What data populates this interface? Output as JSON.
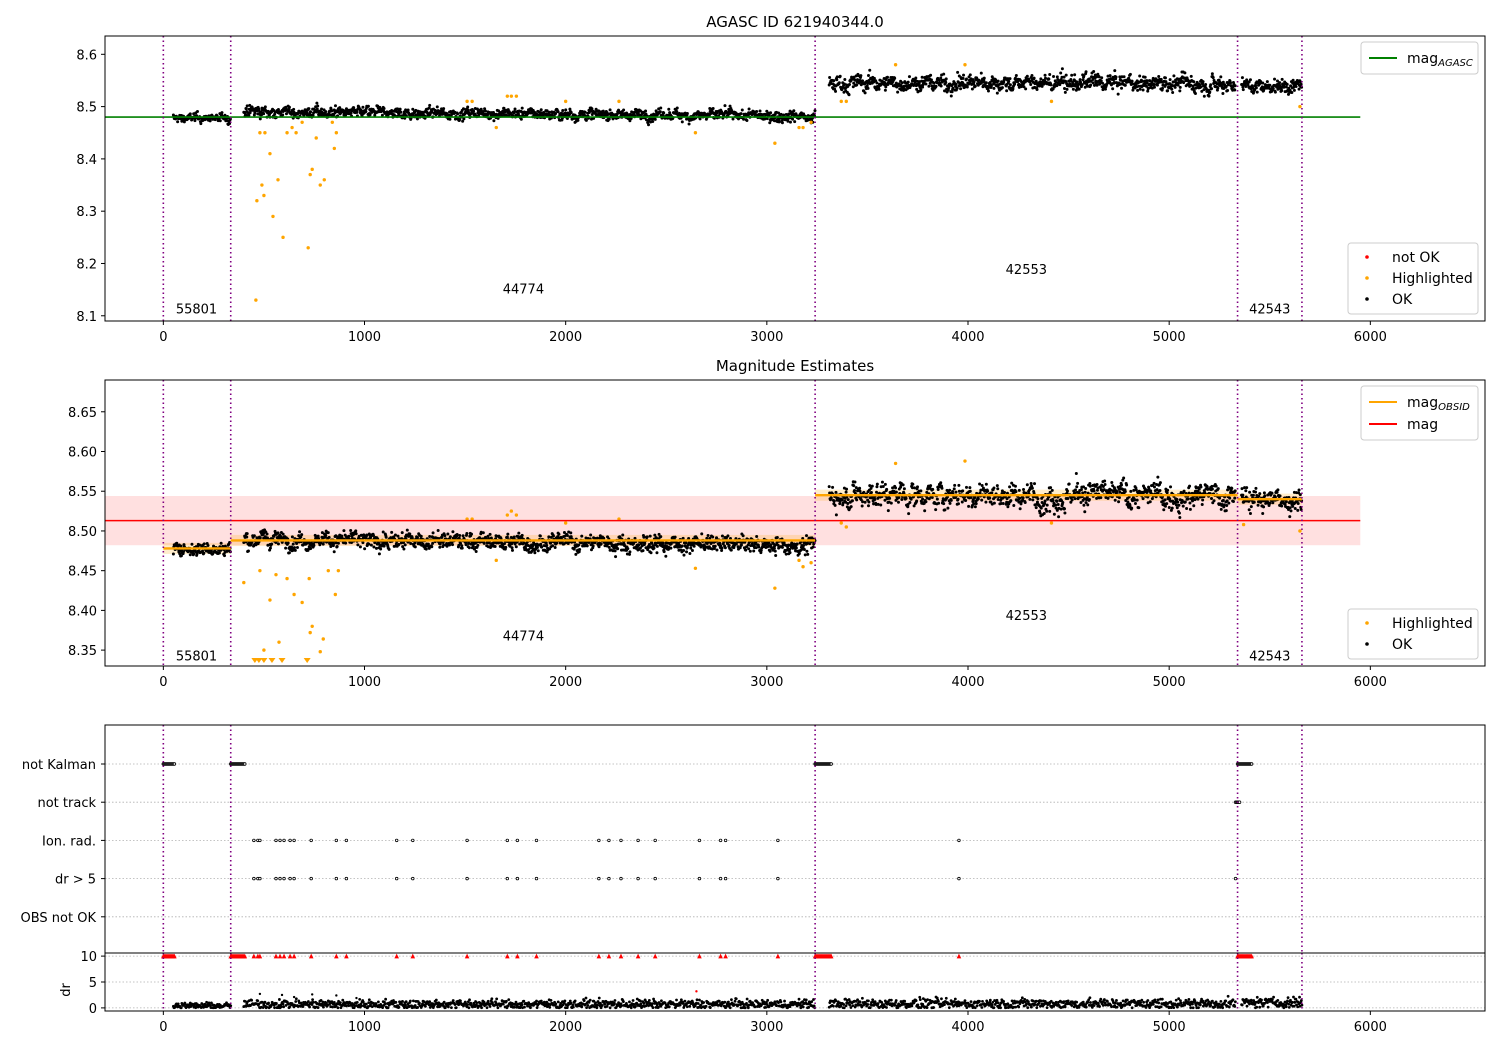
{
  "chart_data": [
    {
      "type": "scatter",
      "title": "AGASC ID 621940344.0",
      "xlim": [
        -290,
        6570
      ],
      "ylim": [
        8.09,
        8.635
      ],
      "x_ticks": [
        0,
        1000,
        2000,
        3000,
        4000,
        5000,
        6000
      ],
      "y_ticks": [
        8.1,
        8.2,
        8.3,
        8.4,
        8.5,
        8.6
      ],
      "grid": false,
      "legend_line": {
        "position": "top-right",
        "entries": [
          {
            "label": "mag",
            "sub": "AGASC",
            "color": "#008000"
          }
        ]
      },
      "legend_points": {
        "position": "bottom-right",
        "entries": [
          {
            "label": "not OK",
            "color": "#ff0000"
          },
          {
            "label": "Highlighted",
            "color": "#ffa500"
          },
          {
            "label": "OK",
            "color": "#000000"
          }
        ]
      },
      "hline": {
        "y": 8.48,
        "x_range": [
          -290,
          5950
        ],
        "color": "#008000"
      },
      "obs_boundaries": [
        0,
        335,
        3240,
        5340,
        5660
      ],
      "obs_labels": [
        {
          "text": "55801",
          "x": 165,
          "y": 8.112
        },
        {
          "text": "44774",
          "x": 1790,
          "y": 8.15
        },
        {
          "text": "42553",
          "x": 4290,
          "y": 8.188
        },
        {
          "text": "42543",
          "x": 5500,
          "y": 8.112
        }
      ],
      "series": [
        {
          "name": "OK",
          "color": "#000000",
          "segments": [
            {
              "x": [
                50,
                335
              ],
              "y": [
                8.478,
                8.478
              ],
              "noise": 0.006
            },
            {
              "x": [
                400,
                3240
              ],
              "y": [
                8.49,
                8.482
              ],
              "noise": 0.008
            },
            {
              "x": [
                3310,
                5330
              ],
              "y": [
                8.545,
                8.545
              ],
              "noise": 0.012
            },
            {
              "x": [
                5360,
                5660
              ],
              "y": [
                8.54,
                8.54
              ],
              "noise": 0.01
            }
          ]
        },
        {
          "name": "Highlighted",
          "color": "#ffa500",
          "points": [
            [
              460,
              8.13
            ],
            [
              465,
              8.32
            ],
            [
              480,
              8.45
            ],
            [
              490,
              8.35
            ],
            [
              500,
              8.33
            ],
            [
              505,
              8.45
            ],
            [
              530,
              8.41
            ],
            [
              545,
              8.29
            ],
            [
              570,
              8.36
            ],
            [
              595,
              8.25
            ],
            [
              615,
              8.45
            ],
            [
              640,
              8.46
            ],
            [
              660,
              8.45
            ],
            [
              690,
              8.47
            ],
            [
              720,
              8.23
            ],
            [
              730,
              8.37
            ],
            [
              740,
              8.38
            ],
            [
              760,
              8.44
            ],
            [
              780,
              8.35
            ],
            [
              800,
              8.36
            ],
            [
              840,
              8.47
            ],
            [
              850,
              8.42
            ],
            [
              860,
              8.45
            ],
            [
              1510,
              8.51
            ],
            [
              1535,
              8.51
            ],
            [
              1655,
              8.46
            ],
            [
              1710,
              8.52
            ],
            [
              1730,
              8.52
            ],
            [
              1755,
              8.52
            ],
            [
              2000,
              8.51
            ],
            [
              2265,
              8.51
            ],
            [
              2645,
              8.45
            ],
            [
              3040,
              8.43
            ],
            [
              3160,
              8.46
            ],
            [
              3180,
              8.46
            ],
            [
              3220,
              8.47
            ],
            [
              3370,
              8.51
            ],
            [
              3395,
              8.51
            ],
            [
              3640,
              8.58
            ],
            [
              3985,
              8.58
            ],
            [
              4415,
              8.51
            ],
            [
              5650,
              8.5
            ]
          ]
        }
      ]
    },
    {
      "type": "scatter",
      "title": "Magnitude Estimates",
      "xlim": [
        -290,
        6570
      ],
      "ylim": [
        8.33,
        8.69
      ],
      "x_ticks": [
        0,
        1000,
        2000,
        3000,
        4000,
        5000,
        6000
      ],
      "y_ticks": [
        8.35,
        8.4,
        8.45,
        8.5,
        8.55,
        8.6,
        8.65
      ],
      "grid": false,
      "legend_line": {
        "position": "top-right",
        "entries": [
          {
            "label": "mag",
            "sub": "OBSID",
            "color": "#ffa500"
          },
          {
            "label": "mag",
            "sub": "",
            "color": "#ff0000"
          }
        ]
      },
      "legend_points": {
        "position": "bottom-right",
        "entries": [
          {
            "label": "Highlighted",
            "color": "#ffa500"
          },
          {
            "label": "OK",
            "color": "#000000"
          }
        ]
      },
      "mag_band": {
        "y": [
          8.482,
          8.544
        ],
        "x_range": [
          -290,
          5950
        ],
        "color": "#ff0000"
      },
      "mag_line": {
        "y": 8.513,
        "x_range": [
          -290,
          5950
        ],
        "color": "#ff0000"
      },
      "obsid_steps": [
        {
          "x": [
            0,
            335
          ],
          "y": 8.478
        },
        {
          "x": [
            335,
            3240
          ],
          "y": 8.488
        },
        {
          "x": [
            3240,
            5340
          ],
          "y": 8.545
        },
        {
          "x": [
            5340,
            5660
          ],
          "y": 8.54
        }
      ],
      "obs_boundaries": [
        0,
        335,
        3240,
        5340,
        5660
      ],
      "obs_labels": [
        {
          "text": "55801",
          "x": 165,
          "y": 8.342
        },
        {
          "text": "44774",
          "x": 1790,
          "y": 8.367
        },
        {
          "text": "42553",
          "x": 4290,
          "y": 8.393
        },
        {
          "text": "42543",
          "x": 5500,
          "y": 8.342
        }
      ],
      "series": [
        {
          "name": "OK",
          "color": "#000000",
          "segments": [
            {
              "x": [
                50,
                335
              ],
              "y": [
                8.478,
                8.478
              ],
              "noise": 0.006
            },
            {
              "x": [
                400,
                3240
              ],
              "y": [
                8.49,
                8.482
              ],
              "noise": 0.008
            },
            {
              "x": [
                3310,
                5330
              ],
              "y": [
                8.545,
                8.545
              ],
              "noise": 0.012
            },
            {
              "x": [
                5360,
                5660
              ],
              "y": [
                8.54,
                8.54
              ],
              "noise": 0.01
            }
          ]
        },
        {
          "name": "Highlighted",
          "color": "#ffa500",
          "points": [
            [
              400,
              8.435
            ],
            [
              480,
              8.45
            ],
            [
              500,
              8.35
            ],
            [
              530,
              8.413
            ],
            [
              560,
              8.445
            ],
            [
              575,
              8.36
            ],
            [
              615,
              8.44
            ],
            [
              650,
              8.42
            ],
            [
              690,
              8.41
            ],
            [
              725,
              8.44
            ],
            [
              730,
              8.372
            ],
            [
              740,
              8.38
            ],
            [
              780,
              8.348
            ],
            [
              795,
              8.364
            ],
            [
              820,
              8.45
            ],
            [
              855,
              8.42
            ],
            [
              870,
              8.45
            ],
            [
              1510,
              8.515
            ],
            [
              1535,
              8.515
            ],
            [
              1655,
              8.463
            ],
            [
              1710,
              8.52
            ],
            [
              1730,
              8.525
            ],
            [
              1755,
              8.52
            ],
            [
              2000,
              8.51
            ],
            [
              2265,
              8.515
            ],
            [
              2645,
              8.453
            ],
            [
              3040,
              8.428
            ],
            [
              3160,
              8.463
            ],
            [
              3180,
              8.455
            ],
            [
              3220,
              8.46
            ],
            [
              3370,
              8.51
            ],
            [
              3395,
              8.505
            ],
            [
              3640,
              8.585
            ],
            [
              3985,
              8.588
            ],
            [
              4415,
              8.51
            ],
            [
              5370,
              8.508
            ],
            [
              5650,
              8.5
            ]
          ],
          "clipped_x": [
            455,
            475,
            500,
            540,
            590,
            715
          ]
        }
      ]
    },
    {
      "type": "scatter",
      "title": "",
      "xlim": [
        -290,
        6570
      ],
      "x_ticks": [
        0,
        1000,
        2000,
        3000,
        4000,
        5000,
        6000
      ],
      "flag_rows": [
        "not Kalman",
        "not track",
        "Ion. rad.",
        "dr > 5",
        "OBS not OK"
      ],
      "flag_points": {
        "not Kalman": [
          [
            0,
            55
          ],
          [
            335,
            405
          ],
          [
            3240,
            3320
          ],
          [
            5340,
            5410
          ]
        ],
        "not track": [
          [
            5330,
            5350
          ]
        ],
        "Ion. rad.": [
          450,
          470,
          480,
          560,
          580,
          600,
          630,
          650,
          735,
          860,
          910,
          1160,
          1240,
          1510,
          1710,
          1760,
          1855,
          2165,
          2215,
          2275,
          2360,
          2445,
          2665,
          2770,
          2795,
          3055,
          3955
        ],
        "dr > 5": [
          450,
          470,
          480,
          560,
          580,
          600,
          630,
          650,
          735,
          860,
          910,
          1160,
          1240,
          1510,
          1710,
          1760,
          1855,
          2165,
          2215,
          2275,
          2360,
          2445,
          2665,
          2770,
          2795,
          3055,
          3955,
          5330
        ],
        "OBS not OK": []
      },
      "obs_boundaries": [
        0,
        335,
        3240,
        5340,
        5660
      ]
    },
    {
      "type": "scatter",
      "title": "",
      "ylabel": "dr",
      "xlim": [
        -290,
        6570
      ],
      "ylim": [
        -0.6,
        10.6
      ],
      "x_ticks": [
        0,
        1000,
        2000,
        3000,
        4000,
        5000,
        6000
      ],
      "y_ticks": [
        0,
        5,
        10
      ],
      "grid": true,
      "obs_boundaries": [
        0,
        335,
        3240,
        5340,
        5660
      ],
      "dr_segments": [
        {
          "x": [
            50,
            335
          ],
          "mean": 0.4,
          "noise": 0.3
        },
        {
          "x": [
            400,
            3240
          ],
          "mean": 0.7,
          "noise": 0.45
        },
        {
          "x": [
            3310,
            5330
          ],
          "mean": 0.8,
          "noise": 0.5
        },
        {
          "x": [
            5360,
            5660
          ],
          "mean": 1.0,
          "noise": 0.5
        }
      ],
      "dr_spikes": [
        [
          480,
          2.7
        ],
        [
          590,
          2.5
        ],
        [
          650,
          2.1
        ],
        [
          740,
          2.6
        ],
        [
          860,
          2.4
        ],
        [
          960,
          1.9
        ],
        [
          2650,
          3.2
        ]
      ],
      "capped_x": [
        [
          0,
          55
        ],
        [
          335,
          405
        ],
        450,
        470,
        480,
        560,
        580,
        600,
        630,
        650,
        735,
        860,
        910,
        1160,
        1240,
        1510,
        1710,
        1760,
        1855,
        2165,
        2215,
        2275,
        2360,
        2445,
        2665,
        2770,
        2795,
        3055,
        3955,
        [
          3240,
          3320
        ],
        [
          5340,
          5410
        ]
      ],
      "cap_value": 10
    }
  ]
}
